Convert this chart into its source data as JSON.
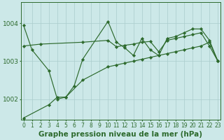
{
  "title": "Graphe pression niveau de la mer (hPa)",
  "series": [
    {
      "x": [
        0,
        1,
        3,
        4,
        5,
        6,
        7,
        10,
        11,
        12,
        13,
        14,
        15,
        16,
        17,
        18,
        19,
        20,
        21,
        22,
        23
      ],
      "y": [
        1003.95,
        1003.3,
        1002.75,
        1002.0,
        1002.05,
        1002.35,
        1003.05,
        1004.05,
        1003.5,
        1003.35,
        1003.15,
        1003.6,
        1003.3,
        1003.15,
        1003.6,
        1003.65,
        1003.75,
        1003.85,
        1003.85,
        1003.55,
        1003.0
      ]
    },
    {
      "x": [
        0,
        2,
        7,
        10,
        11,
        12,
        13,
        14,
        15,
        16,
        17,
        18,
        19,
        20,
        21,
        22,
        23
      ],
      "y": [
        1003.4,
        1003.45,
        1003.5,
        1003.55,
        1003.38,
        1003.42,
        1003.45,
        1003.5,
        1003.52,
        1003.25,
        1003.55,
        1003.6,
        1003.65,
        1003.7,
        1003.75,
        1003.4,
        1003.0
      ]
    },
    {
      "x": [
        0,
        3,
        4,
        5,
        7,
        10,
        11,
        12,
        13,
        14,
        15,
        16,
        17,
        18,
        19,
        20,
        21,
        22,
        23
      ],
      "y": [
        1001.5,
        1001.85,
        1002.05,
        1002.05,
        1002.5,
        1002.85,
        1002.9,
        1002.95,
        1003.0,
        1003.05,
        1003.1,
        1003.15,
        1003.2,
        1003.25,
        1003.3,
        1003.35,
        1003.4,
        1003.5,
        1003.0
      ]
    }
  ],
  "line_color": "#2d6a2d",
  "marker": "D",
  "markersize": 2.2,
  "linewidth": 0.85,
  "bg_color": "#cce8e8",
  "grid_color": "#aacccc",
  "text_color": "#2d6a2d",
  "ylim": [
    1001.45,
    1004.55
  ],
  "yticks": [
    1002,
    1003,
    1004
  ],
  "xlim": [
    -0.3,
    23.3
  ],
  "xticks": [
    0,
    1,
    2,
    3,
    4,
    5,
    6,
    7,
    8,
    9,
    10,
    11,
    12,
    13,
    14,
    15,
    16,
    17,
    18,
    19,
    20,
    21,
    22,
    23
  ],
  "tick_fontsize": 5.5,
  "ylabel_fontsize": 6.5,
  "title_fontsize": 7.5
}
